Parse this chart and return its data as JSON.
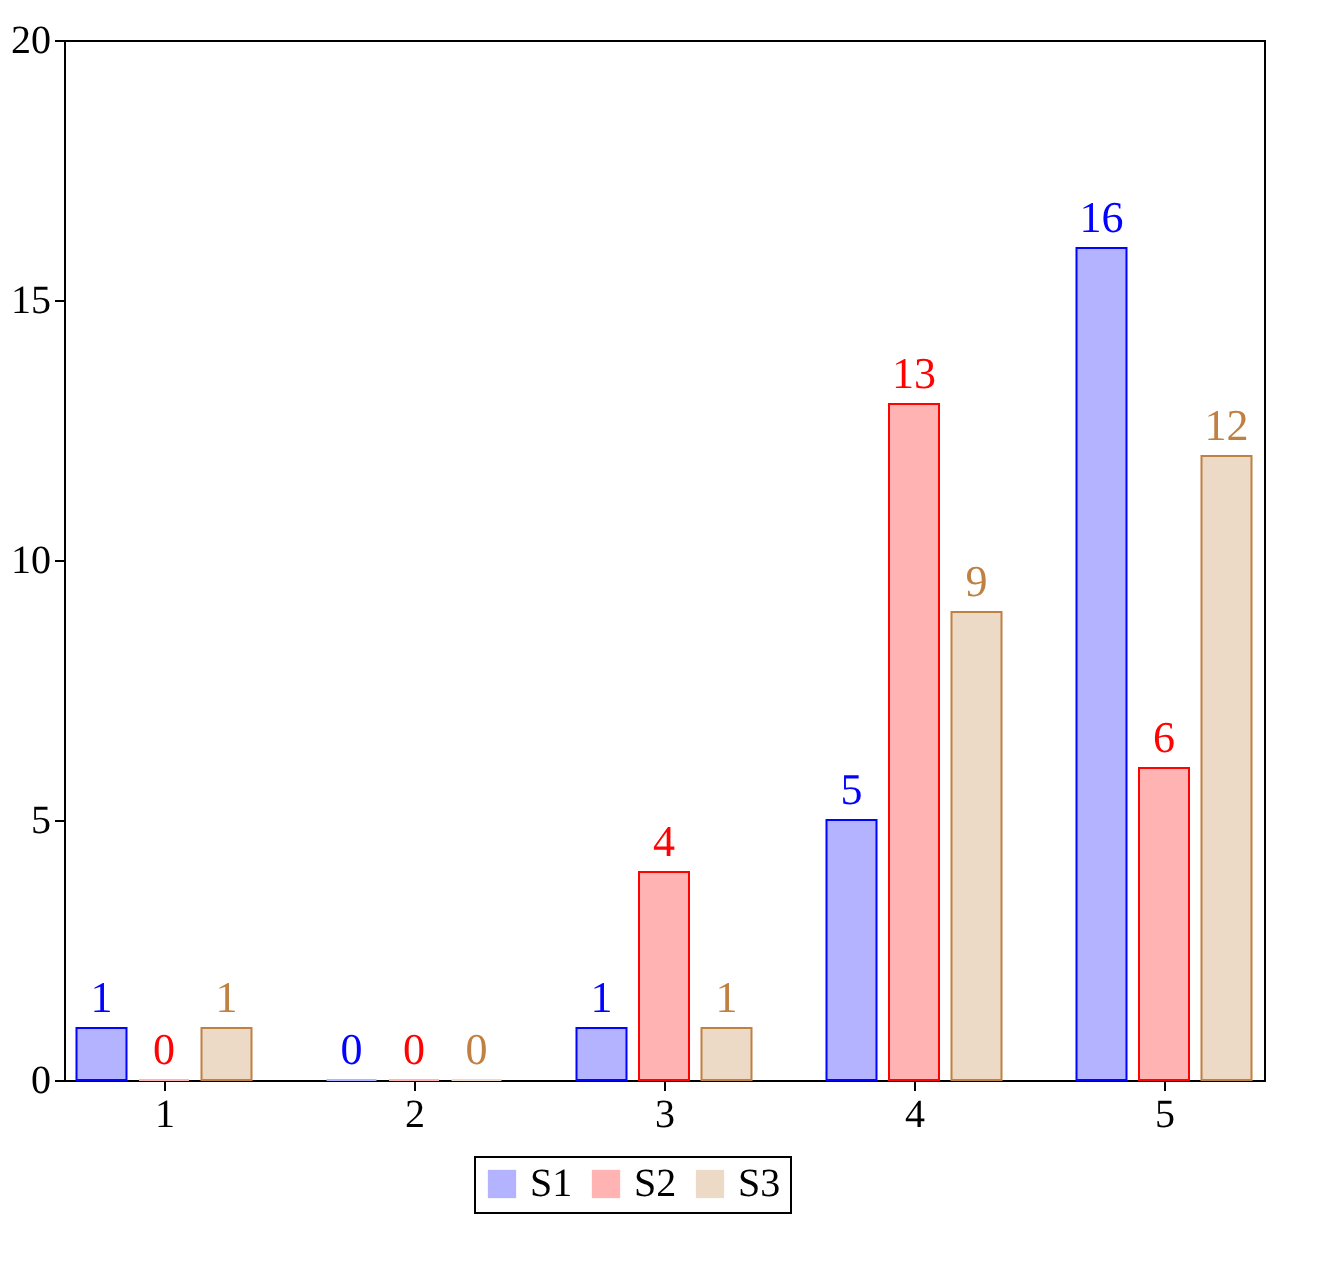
{
  "chart_data": {
    "type": "bar",
    "x": [
      1,
      2,
      3,
      4,
      5
    ],
    "series": [
      {
        "name": "S1",
        "color": "#b3b3ff",
        "values": [
          1,
          0,
          1,
          5,
          16
        ]
      },
      {
        "name": "S2",
        "color": "#ffb3b3",
        "values": [
          0,
          0,
          4,
          13,
          6
        ]
      },
      {
        "name": "S3",
        "color": "#ecd9c6",
        "values": [
          1,
          0,
          1,
          9,
          12
        ]
      }
    ],
    "xlim": [
      0.6,
      5.4
    ],
    "xticks": [
      1,
      2,
      3,
      4,
      5
    ],
    "ylim": [
      0,
      20
    ],
    "yticks": [
      0,
      5,
      10,
      15,
      20
    ],
    "data_labels": true,
    "legend": "bottom",
    "grid": false
  }
}
